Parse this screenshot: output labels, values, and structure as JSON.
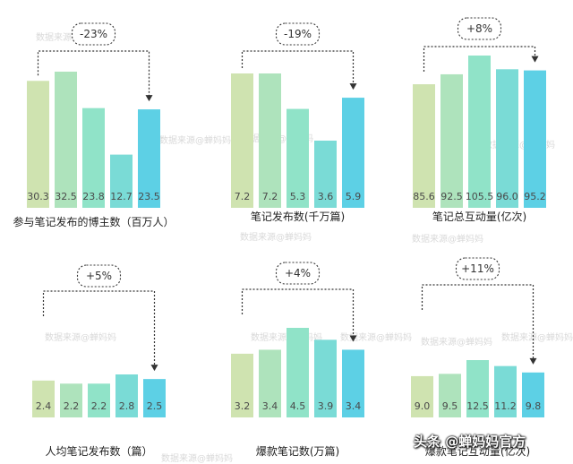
{
  "colors": [
    "#cfe3b0",
    "#aee3bc",
    "#90e3c8",
    "#7adbd6",
    "#5dd0e5"
  ],
  "watermark": {
    "chart_text": "数据来源@蝉妈妈",
    "bottom_text": "头条 @蝉妈妈官方"
  },
  "chart_data": [
    {
      "type": "bar",
      "title": "参与笔记发布的博主数（百万人）",
      "change": "-23%",
      "values": [
        30.3,
        32.5,
        23.8,
        12.7,
        23.5
      ],
      "labels": [
        "30.3",
        "32.5",
        "23.8",
        "12.7",
        "23.5"
      ]
    },
    {
      "type": "bar",
      "title": "笔记发布数(千万篇)",
      "change": "-19%",
      "values": [
        7.2,
        7.2,
        5.3,
        3.6,
        5.9
      ],
      "labels": [
        "7.2",
        "7.2",
        "5.3",
        "3.6",
        "5.9"
      ]
    },
    {
      "type": "bar",
      "title": "笔记总互动量(亿次)",
      "change": "+8%",
      "values": [
        85.6,
        92.5,
        105.5,
        96.0,
        95.2
      ],
      "labels": [
        "85.6",
        "92.5",
        "105.5",
        "96.0",
        "95.2"
      ]
    },
    {
      "type": "bar",
      "title": "人均笔记发布数（篇）",
      "change": "+5%",
      "values": [
        2.4,
        2.2,
        2.2,
        2.8,
        2.5
      ],
      "labels": [
        "2.4",
        "2.2",
        "2.2",
        "2.8",
        "2.5"
      ]
    },
    {
      "type": "bar",
      "title": "爆款笔记数(万篇)",
      "change": "+4%",
      "values": [
        3.2,
        3.4,
        4.5,
        3.9,
        3.4
      ],
      "labels": [
        "3.2",
        "3.4",
        "4.5",
        "3.9",
        "3.4"
      ]
    },
    {
      "type": "bar",
      "title": "爆款笔记互动量(亿次)",
      "change": "+11%",
      "values": [
        9.0,
        9.5,
        12.5,
        11.2,
        9.8
      ],
      "labels": [
        "9.0",
        "9.5",
        "12.5",
        "11.2",
        "9.8"
      ]
    }
  ]
}
